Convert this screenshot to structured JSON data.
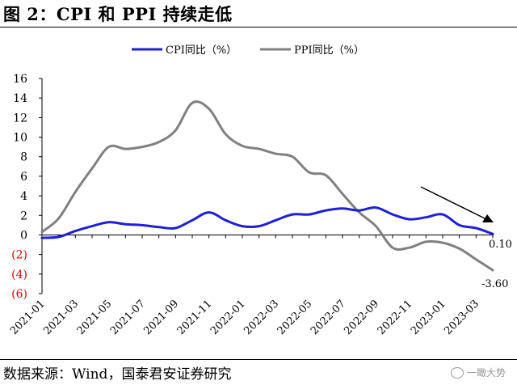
{
  "header": {
    "title": "图 2：CPI 和 PPI 持续走低"
  },
  "footer": {
    "source": "数据来源：Wind，国泰君安证券研究",
    "watermark": "一瞰大势",
    "watermark_icon": "wechat-icon"
  },
  "chart_data": {
    "type": "line",
    "title": "图 2：CPI 和 PPI 持续走低",
    "xlabel": "",
    "ylabel": "",
    "ylim": [
      -6,
      16
    ],
    "yticks": [
      16,
      14,
      12,
      10,
      8,
      6,
      4,
      2,
      0,
      -2,
      -4,
      -6
    ],
    "ytick_labels": [
      "16",
      "14",
      "12",
      "10",
      "8",
      "6",
      "4",
      "2",
      "0",
      "(2)",
      "(4)",
      "(6)"
    ],
    "negative_tick_color": "#e00000",
    "grid": false,
    "legend": "top",
    "categories": [
      "2021-01",
      "2021-02",
      "2021-03",
      "2021-04",
      "2021-05",
      "2021-06",
      "2021-07",
      "2021-08",
      "2021-09",
      "2021-10",
      "2021-11",
      "2021-12",
      "2022-01",
      "2022-02",
      "2022-03",
      "2022-04",
      "2022-05",
      "2022-06",
      "2022-07",
      "2022-08",
      "2022-09",
      "2022-10",
      "2022-11",
      "2022-12",
      "2023-01",
      "2023-02",
      "2023-03",
      "2023-04"
    ],
    "xtick_labels": [
      "2021-01",
      "2021-03",
      "2021-05",
      "2021-07",
      "2021-09",
      "2021-11",
      "2022-01",
      "2022-03",
      "2022-05",
      "2022-07",
      "2022-09",
      "2022-11",
      "2023-01",
      "2023-03"
    ],
    "series": [
      {
        "name": "CPI同比（%）",
        "color": "#1f1fd6",
        "values": [
          -0.3,
          -0.2,
          0.4,
          0.9,
          1.3,
          1.1,
          1.0,
          0.8,
          0.7,
          1.5,
          2.3,
          1.5,
          0.9,
          0.9,
          1.5,
          2.1,
          2.1,
          2.5,
          2.7,
          2.5,
          2.8,
          2.1,
          1.6,
          1.8,
          2.1,
          1.0,
          0.7,
          0.1
        ]
      },
      {
        "name": "PPI同比（%）",
        "color": "#808080",
        "values": [
          0.3,
          1.7,
          4.4,
          6.8,
          9.0,
          8.8,
          9.0,
          9.5,
          10.7,
          13.5,
          12.9,
          10.3,
          9.1,
          8.8,
          8.3,
          8.0,
          6.4,
          6.1,
          4.2,
          2.3,
          0.9,
          -1.3,
          -1.3,
          -0.7,
          -0.8,
          -1.4,
          -2.5,
          -3.6
        ]
      }
    ],
    "annotations": [
      {
        "text": "0.10",
        "series": 0,
        "category": "2023-04"
      },
      {
        "text": "-3.60",
        "series": 1,
        "category": "2023-04"
      }
    ]
  }
}
